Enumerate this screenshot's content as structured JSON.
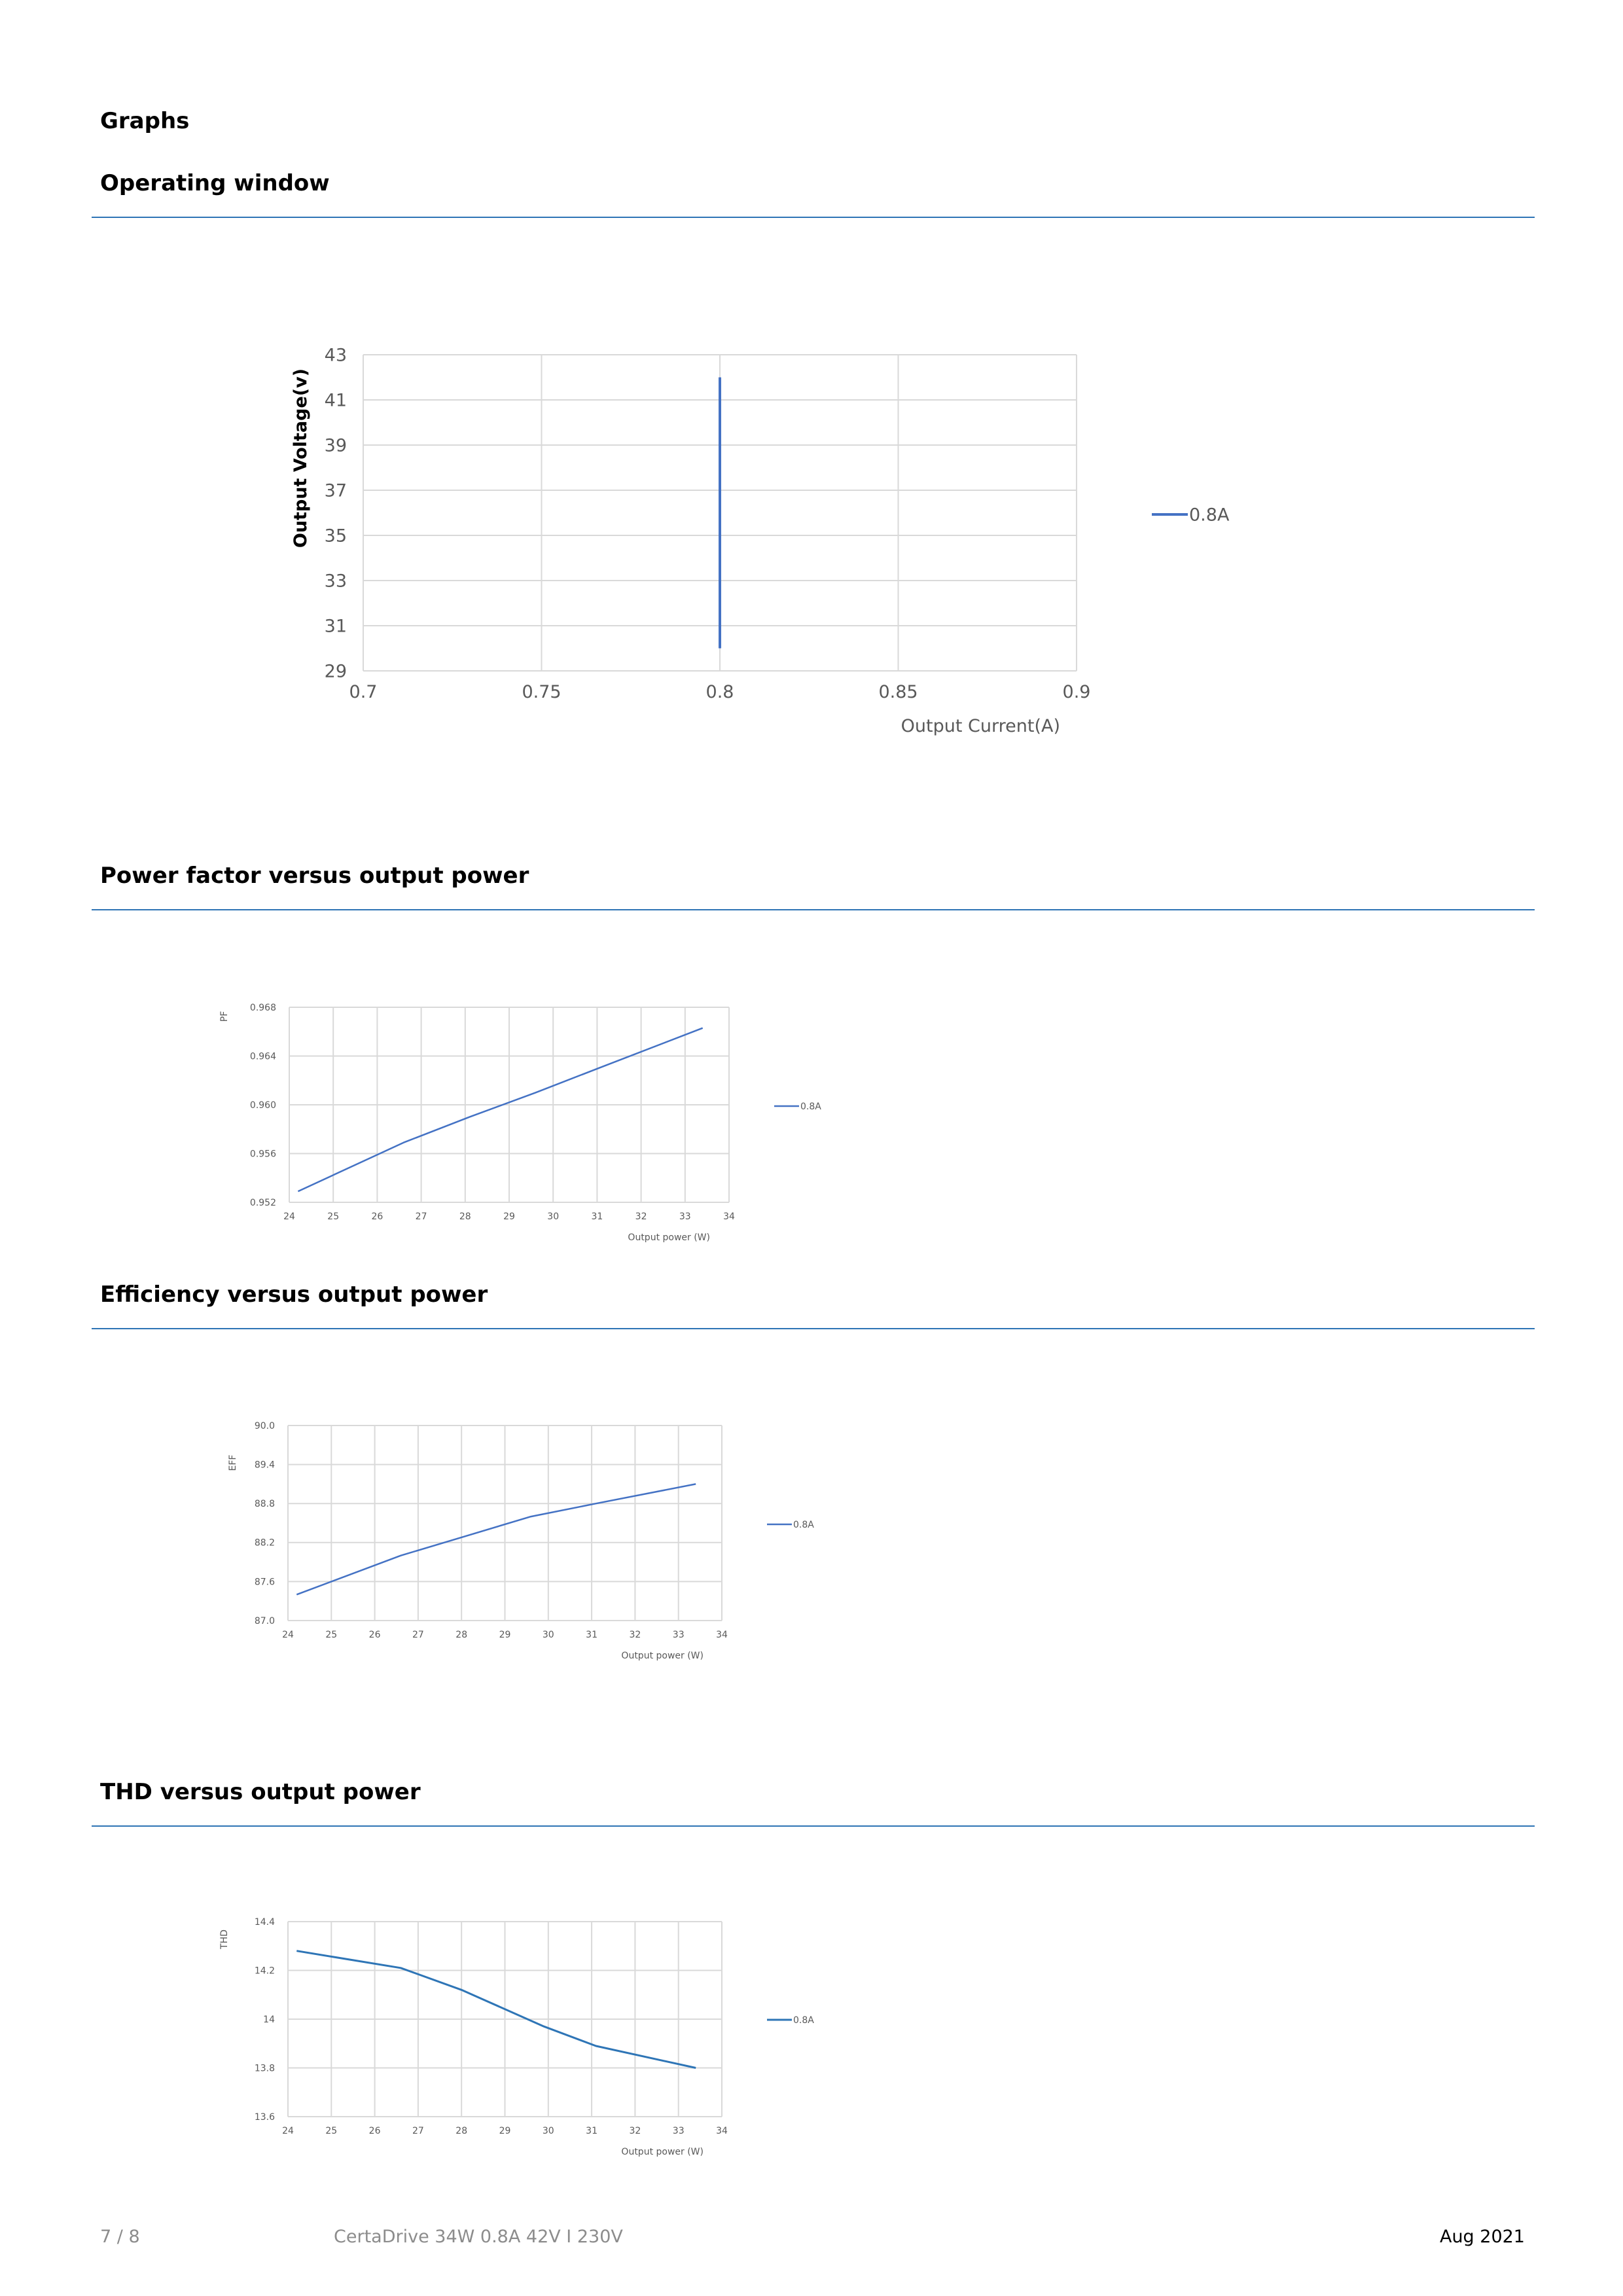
{
  "heading": "Graphs",
  "sections": [
    {
      "title": "Operating window"
    },
    {
      "title": "Power factor versus output power"
    },
    {
      "title": "Efficiency versus output power"
    },
    {
      "title": "THD versus output power"
    }
  ],
  "footer": {
    "page": "7 / 8",
    "product": "CertaDrive 34W 0.8A 42V I 230V",
    "date": "Aug 2021"
  },
  "colors": {
    "line": "#4472c4",
    "thd_line": "#2e75b6",
    "grid": "#d9d9d9",
    "rule": "#2e74b5"
  },
  "chart_data": [
    {
      "type": "line",
      "title": "",
      "xlabel": "Output Current(A)",
      "ylabel": "Output Voltage(v)",
      "xlim": [
        0.7,
        0.9
      ],
      "ylim": [
        29,
        43
      ],
      "x_ticks": [
        "0.7",
        "0.75",
        "0.8",
        "0.85",
        "0.9"
      ],
      "y_ticks": [
        "29",
        "31",
        "33",
        "35",
        "37",
        "39",
        "41",
        "43"
      ],
      "series": [
        {
          "name": "0.8A",
          "x": [
            0.8,
            0.8
          ],
          "y": [
            30,
            42
          ]
        }
      ],
      "legend": "right",
      "grid": true
    },
    {
      "type": "line",
      "title": "",
      "xlabel": "Output power (W)",
      "ylabel": "PF",
      "xlim": [
        24,
        34
      ],
      "ylim": [
        0.952,
        0.968
      ],
      "x_ticks": [
        "24",
        "25",
        "26",
        "27",
        "28",
        "29",
        "30",
        "31",
        "32",
        "33",
        "34"
      ],
      "y_ticks": [
        "0.952",
        "0.956",
        "0.960",
        "0.964",
        "0.968"
      ],
      "series": [
        {
          "name": "0.8A",
          "x": [
            24.2,
            26.6,
            28.1,
            29.6,
            31.1,
            33.4
          ],
          "y": [
            0.9529,
            0.9569,
            0.959,
            0.961,
            0.9631,
            0.9663
          ]
        }
      ],
      "legend": "right",
      "grid": true
    },
    {
      "type": "line",
      "title": "",
      "xlabel": "Output power (W)",
      "ylabel": "EFF",
      "xlim": [
        24,
        34
      ],
      "ylim": [
        87.0,
        90.0
      ],
      "x_ticks": [
        "24",
        "25",
        "26",
        "27",
        "28",
        "29",
        "30",
        "31",
        "32",
        "33",
        "34"
      ],
      "y_ticks": [
        "87.0",
        "87.6",
        "88.2",
        "88.8",
        "89.4",
        "90.0"
      ],
      "series": [
        {
          "name": "0.8A",
          "x": [
            24.2,
            26.6,
            28.1,
            29.6,
            31.1,
            33.4
          ],
          "y": [
            87.4,
            88.0,
            88.3,
            88.6,
            88.8,
            89.1
          ]
        }
      ],
      "legend": "right",
      "grid": true
    },
    {
      "type": "line",
      "title": "",
      "xlabel": "Output power (W)",
      "ylabel": "THD",
      "xlim": [
        24,
        34
      ],
      "ylim": [
        13.6,
        14.4
      ],
      "x_ticks": [
        "24",
        "25",
        "26",
        "27",
        "28",
        "29",
        "30",
        "31",
        "32",
        "33",
        "34"
      ],
      "y_ticks": [
        "13.6",
        "13.8",
        "14",
        "14.2",
        "14.4"
      ],
      "series": [
        {
          "name": "0.8A",
          "x": [
            24.2,
            26.6,
            28.0,
            29.9,
            31.1,
            33.4
          ],
          "y": [
            14.28,
            14.21,
            14.12,
            13.97,
            13.89,
            13.8
          ]
        }
      ],
      "legend": "right",
      "grid": true
    }
  ]
}
